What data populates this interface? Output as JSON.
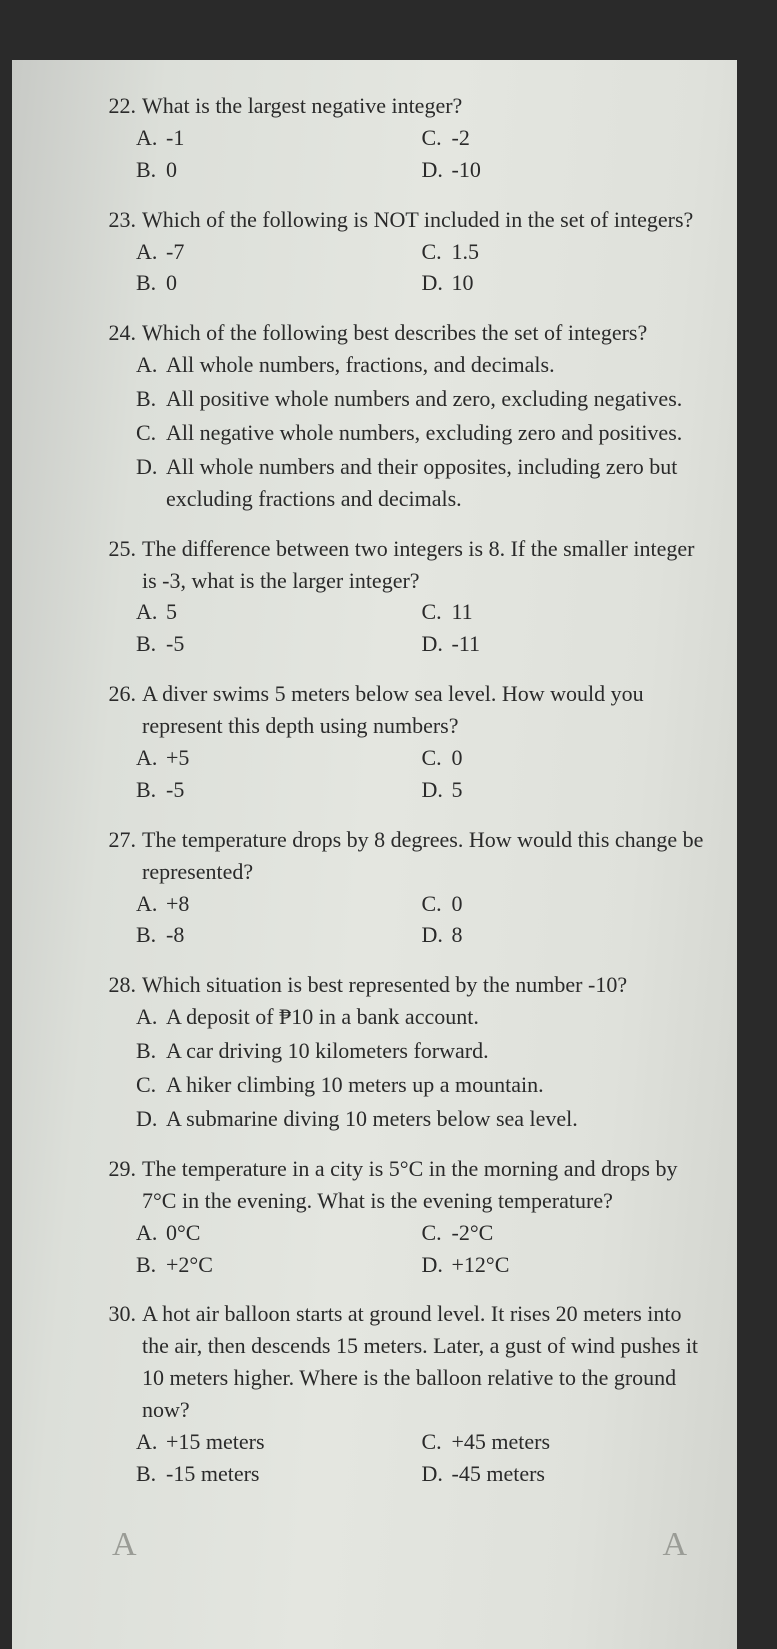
{
  "text_color": "#2a2a2a",
  "background_color": "#dcdfd9",
  "font_family": "Georgia, serif",
  "font_size_pt": 16,
  "questions": [
    {
      "num": "22.",
      "stem": "What is the largest negative integer?",
      "layout": "2col",
      "options": {
        "A": "-1",
        "B": "0",
        "C": "-2",
        "D": "-10"
      }
    },
    {
      "num": "23.",
      "stem": "Which of the following is NOT included in the set of integers?",
      "layout": "2col",
      "options": {
        "A": "-7",
        "B": "0",
        "C": "1.5",
        "D": "10"
      }
    },
    {
      "num": "24.",
      "stem": "Which of the following best describes the set of integers?",
      "layout": "full",
      "options": {
        "A": "All whole numbers, fractions, and decimals.",
        "B": "All positive whole numbers and zero, excluding negatives.",
        "C": "All negative whole numbers, excluding zero and positives.",
        "D": "All whole numbers and their opposites, including zero but excluding fractions and decimals."
      }
    },
    {
      "num": "25.",
      "stem": "The difference between two integers is 8. If the smaller integer is -3, what is the larger integer?",
      "layout": "2col",
      "options": {
        "A": "5",
        "B": "-5",
        "C": "11",
        "D": "-11"
      }
    },
    {
      "num": "26.",
      "stem": "A diver swims 5 meters below sea level. How would you represent this depth using numbers?",
      "layout": "2col",
      "options": {
        "A": "+5",
        "B": "-5",
        "C": "0",
        "D": "5"
      }
    },
    {
      "num": "27.",
      "stem": "The temperature drops by 8 degrees. How would this change be represented?",
      "layout": "2col",
      "options": {
        "A": "+8",
        "B": "-8",
        "C": "0",
        "D": "8"
      }
    },
    {
      "num": "28.",
      "stem": "Which situation is best represented by the number -10?",
      "layout": "full",
      "options": {
        "A": "A deposit of ₱10 in a bank account.",
        "B": "A car driving 10 kilometers forward.",
        "C": "A hiker climbing 10 meters up a mountain.",
        "D": "A submarine diving 10 meters below sea level."
      }
    },
    {
      "num": "29.",
      "stem": "The temperature in a city is 5°C in the morning and drops by 7°C in the evening. What is the evening temperature?",
      "layout": "2col",
      "options": {
        "A": "0°C",
        "B": "+2°C",
        "C": "-2°C",
        "D": "+12°C"
      }
    },
    {
      "num": "30.",
      "stem": "A hot air balloon starts at ground level. It rises 20 meters into the air, then descends 15 meters. Later, a gust of wind pushes it 10 meters higher. Where is the balloon relative to the ground now?",
      "layout": "2col",
      "options": {
        "A": "+15 meters",
        "B": "-15 meters",
        "C": "+45 meters",
        "D": "-45 meters"
      }
    }
  ],
  "footer": {
    "left": "A",
    "mid": "",
    "right": "A"
  }
}
